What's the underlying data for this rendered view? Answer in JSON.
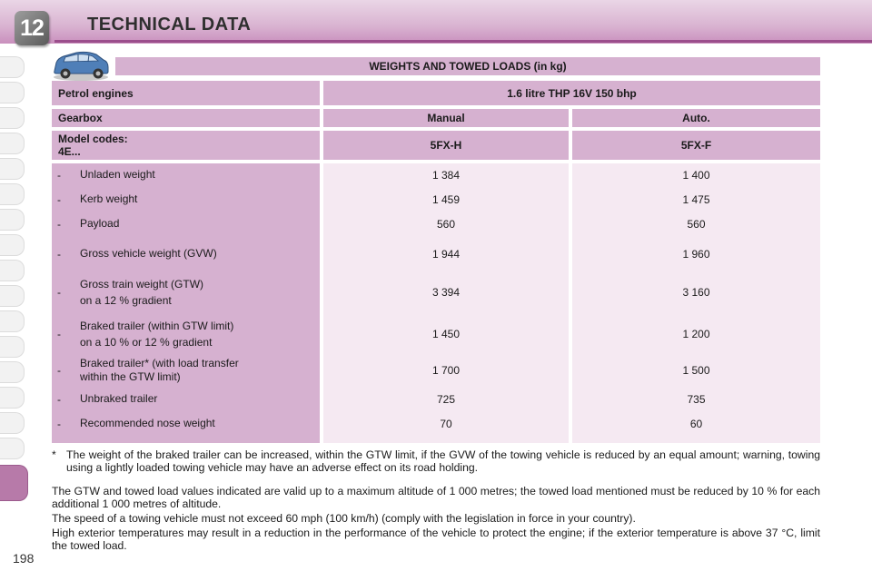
{
  "header": {
    "chapter": "12",
    "title": "TECHNICAL DATA"
  },
  "page_number": "198",
  "table": {
    "title": "WEIGHTS AND TOWED LOADS (in kg)",
    "engine_row": {
      "label": "Petrol engines",
      "value": "1.6 litre THP 16V 150 bhp"
    },
    "gearbox_row": {
      "label": "Gearbox",
      "values": [
        "Manual",
        "Auto."
      ]
    },
    "model_row": {
      "label_line1": "Model codes:",
      "label_line2": "4E...",
      "values": [
        "5FX-H",
        "5FX-F"
      ]
    },
    "rows": [
      {
        "dash": "-",
        "line1": "Unladen weight",
        "line2": "",
        "manual": "1 384",
        "auto": "1 400"
      },
      {
        "dash": "-",
        "line1": "Kerb weight",
        "line2": "",
        "manual": "1 459",
        "auto": "1 475"
      },
      {
        "dash": "-",
        "line1": "Payload",
        "line2": "",
        "manual": "560",
        "auto": "560"
      },
      {
        "dash": "-",
        "line1": "Gross vehicle weight (GVW)",
        "line2": "",
        "manual": "1 944",
        "auto": "1 960"
      },
      {
        "dash": "-",
        "line1": "Gross train weight (GTW)",
        "line2": "on a 12 % gradient",
        "manual": "3 394",
        "auto": "3 160"
      },
      {
        "dash": "-",
        "line1": "Braked trailer (within GTW limit)",
        "line2": "on a 10 % or 12 % gradient",
        "manual": "1 450",
        "auto": "1 200"
      },
      {
        "dash": "-",
        "line1": "Braked trailer* (with load transfer",
        "line2": "within the GTW limit)",
        "manual": "1 700",
        "auto": "1 500"
      },
      {
        "dash": "-",
        "line1": "Unbraked trailer",
        "line2": "",
        "manual": "725",
        "auto": "735"
      },
      {
        "dash": "-",
        "line1": "Recommended nose weight",
        "line2": "",
        "manual": "70",
        "auto": "60"
      }
    ]
  },
  "notes": {
    "star": "*",
    "footnote": "The weight of the braked trailer can be increased, within the GTW limit, if the GVW of the towing vehicle is reduced by an equal amount; warning, towing using a lightly loaded towing vehicle may have an adverse effect on its road holding.",
    "para1": "The GTW and towed load values indicated are valid up to a maximum altitude of 1 000 metres; the towed load mentioned must be reduced by 10 % for each additional 1 000 metres of altitude.",
    "para2": "The speed of a towing vehicle must not exceed 60 mph (100 km/h) (comply with the legislation in force in your country).",
    "para3": "High exterior temperatures may result in a reduction in the performance of the vehicle to protect the engine; if the exterior temperature is above 37 °C, limit the towed load."
  },
  "icons": {
    "chapter_badge": "chapter-number-badge",
    "car": "car-icon"
  },
  "colors": {
    "header_accent": "#9b4e8c",
    "cell_label": "#d6b1d0",
    "cell_value": "#f5e9f2"
  }
}
